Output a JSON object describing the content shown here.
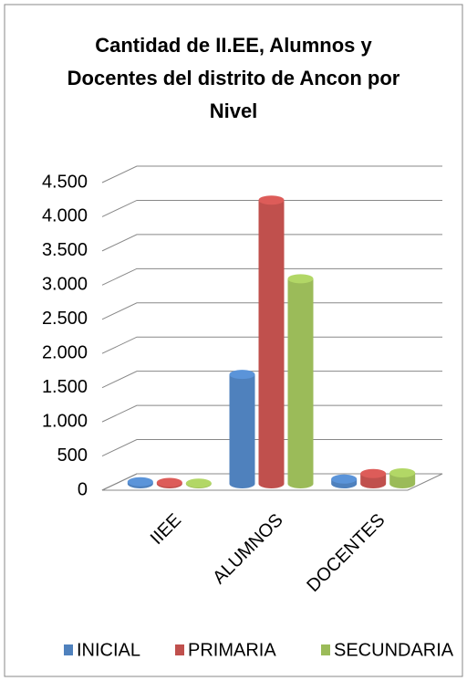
{
  "chart_data": {
    "type": "bar",
    "title": "Cantidad de II.EE, Alumnos y Docentes del distrito de Ancon por Nivel",
    "categories": [
      "IIEE",
      "ALUMNOS",
      "DOCENTES"
    ],
    "series": [
      {
        "name": "INICIAL",
        "color": "#4f81bd",
        "values": [
          30,
          1600,
          70
        ]
      },
      {
        "name": "PRIMARIA",
        "color": "#c0504d",
        "values": [
          20,
          4150,
          150
        ]
      },
      {
        "name": "SECUNDARIA",
        "color": "#9bbb59",
        "values": [
          10,
          3000,
          160
        ]
      }
    ],
    "ylim": [
      0,
      4500
    ],
    "yticks": [
      0,
      500,
      {
        "value": 1000,
        "label": "1.000"
      },
      {
        "value": 1500,
        "label": "1.500"
      },
      {
        "value": 2000,
        "label": "2.000"
      },
      {
        "value": 2500,
        "label": "2.500"
      },
      {
        "value": 3000,
        "label": "3.000"
      },
      {
        "value": 3500,
        "label": "3.500"
      },
      {
        "value": 4000,
        "label": "4.000"
      },
      {
        "value": 4500,
        "label": "4.500"
      }
    ],
    "grid": true,
    "legend": "bottom"
  }
}
